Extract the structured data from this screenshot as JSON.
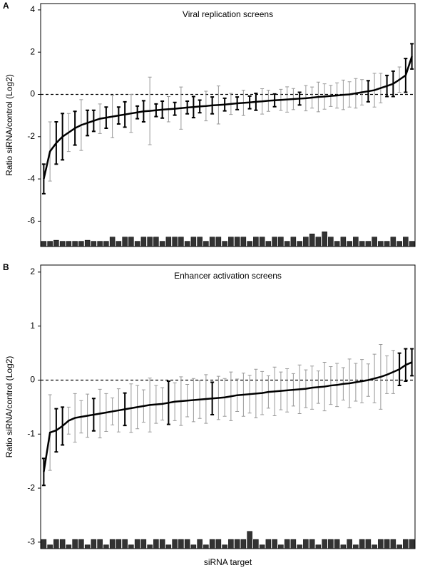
{
  "chart_data": [
    {
      "type": "errorbar",
      "panel_label": "A",
      "title": "Viral replication screens",
      "ylabel": "Ratio siRNA/control (Log2)",
      "ylim": [
        -7.2,
        4.3
      ],
      "yticks": [
        4,
        2,
        0,
        -2,
        -4,
        -6
      ],
      "reference_line": 0,
      "bar_base": -7.2,
      "color": "#000000",
      "muted_color": "#999999",
      "values": [
        -4.0,
        -2.7,
        -2.3,
        -2.0,
        -1.8,
        -1.6,
        -1.45,
        -1.35,
        -1.25,
        -1.15,
        -1.1,
        -1.05,
        -1.0,
        -0.95,
        -0.9,
        -0.85,
        -0.8,
        -0.78,
        -0.75,
        -0.72,
        -0.7,
        -0.68,
        -0.65,
        -0.62,
        -0.6,
        -0.57,
        -0.55,
        -0.52,
        -0.5,
        -0.48,
        -0.45,
        -0.42,
        -0.4,
        -0.38,
        -0.35,
        -0.33,
        -0.3,
        -0.28,
        -0.26,
        -0.24,
        -0.22,
        -0.2,
        -0.18,
        -0.15,
        -0.12,
        -0.1,
        -0.07,
        -0.05,
        -0.02,
        0.0,
        0.05,
        0.1,
        0.15,
        0.2,
        0.3,
        0.4,
        0.5,
        0.7,
        0.9,
        1.8
      ],
      "errors": [
        0.7,
        1.4,
        1.0,
        1.1,
        0.9,
        0.8,
        1.2,
        0.6,
        0.5,
        0.7,
        0.5,
        1.0,
        0.4,
        0.6,
        0.9,
        0.3,
        0.5,
        1.6,
        0.3,
        0.4,
        0.6,
        0.3,
        1.0,
        0.3,
        0.5,
        0.3,
        0.7,
        0.4,
        0.9,
        0.3,
        0.5,
        0.3,
        0.6,
        0.3,
        0.4,
        0.6,
        0.5,
        0.3,
        0.5,
        0.6,
        0.5,
        0.3,
        0.6,
        0.5,
        0.7,
        0.6,
        0.5,
        0.6,
        0.7,
        0.6,
        0.7,
        0.6,
        0.5,
        0.8,
        0.7,
        0.5,
        0.6,
        0.6,
        0.8,
        0.6
      ],
      "significant": [
        true,
        false,
        true,
        true,
        false,
        true,
        false,
        true,
        true,
        false,
        true,
        false,
        true,
        true,
        false,
        true,
        true,
        false,
        true,
        true,
        false,
        true,
        false,
        true,
        true,
        true,
        false,
        true,
        false,
        true,
        false,
        true,
        false,
        true,
        true,
        false,
        false,
        true,
        false,
        false,
        false,
        true,
        false,
        false,
        false,
        false,
        false,
        false,
        false,
        false,
        false,
        false,
        true,
        false,
        false,
        true,
        true,
        false,
        true,
        true
      ],
      "bottom_bars": [
        -6.95,
        -6.95,
        -6.9,
        -6.95,
        -6.95,
        -6.95,
        -6.95,
        -6.9,
        -6.95,
        -6.95,
        -6.95,
        -6.75,
        -6.95,
        -6.75,
        -6.75,
        -6.95,
        -6.75,
        -6.75,
        -6.75,
        -6.95,
        -6.75,
        -6.75,
        -6.75,
        -6.95,
        -6.75,
        -6.75,
        -6.95,
        -6.75,
        -6.75,
        -6.95,
        -6.75,
        -6.75,
        -6.75,
        -6.95,
        -6.75,
        -6.75,
        -6.95,
        -6.75,
        -6.75,
        -6.95,
        -6.75,
        -6.95,
        -6.75,
        -6.6,
        -6.75,
        -6.5,
        -6.75,
        -6.95,
        -6.75,
        -6.95,
        -6.75,
        -6.95,
        -6.95,
        -6.75,
        -6.95,
        -6.95,
        -6.75,
        -6.95,
        -6.75,
        -6.95
      ]
    },
    {
      "type": "errorbar",
      "panel_label": "B",
      "title": "Enhancer activation screens",
      "ylabel": "Ratio siRNA/control (Log2)",
      "xlabel": "siRNA target",
      "ylim": [
        -3.12,
        2.13
      ],
      "yticks": [
        2,
        1,
        0,
        -1,
        -2,
        -3
      ],
      "reference_line": 0,
      "bar_base": -3.12,
      "color": "#000000",
      "muted_color": "#999999",
      "values": [
        -1.7,
        -0.97,
        -0.93,
        -0.85,
        -0.75,
        -0.7,
        -0.68,
        -0.66,
        -0.64,
        -0.62,
        -0.6,
        -0.58,
        -0.56,
        -0.54,
        -0.52,
        -0.5,
        -0.48,
        -0.46,
        -0.45,
        -0.44,
        -0.42,
        -0.4,
        -0.39,
        -0.38,
        -0.37,
        -0.36,
        -0.35,
        -0.34,
        -0.33,
        -0.32,
        -0.3,
        -0.28,
        -0.27,
        -0.26,
        -0.25,
        -0.24,
        -0.22,
        -0.21,
        -0.2,
        -0.19,
        -0.18,
        -0.17,
        -0.16,
        -0.14,
        -0.13,
        -0.12,
        -0.1,
        -0.09,
        -0.07,
        -0.06,
        -0.04,
        -0.02,
        0.0,
        0.03,
        0.06,
        0.1,
        0.15,
        0.2,
        0.28,
        0.33
      ],
      "errors": [
        0.25,
        0.7,
        0.4,
        0.35,
        0.25,
        0.45,
        0.3,
        0.4,
        0.3,
        0.45,
        0.35,
        0.25,
        0.4,
        0.3,
        0.45,
        0.4,
        0.3,
        0.5,
        0.35,
        0.3,
        0.4,
        0.35,
        0.45,
        0.3,
        0.4,
        0.35,
        0.45,
        0.3,
        0.4,
        0.35,
        0.45,
        0.3,
        0.4,
        0.35,
        0.45,
        0.4,
        0.3,
        0.45,
        0.35,
        0.4,
        0.3,
        0.45,
        0.35,
        0.4,
        0.3,
        0.45,
        0.35,
        0.4,
        0.3,
        0.45,
        0.35,
        0.4,
        0.3,
        0.45,
        0.6,
        0.35,
        0.4,
        0.3,
        0.3,
        0.25
      ],
      "significant": [
        true,
        false,
        true,
        true,
        false,
        false,
        false,
        false,
        true,
        false,
        false,
        false,
        false,
        true,
        false,
        false,
        false,
        false,
        false,
        false,
        true,
        false,
        false,
        false,
        false,
        false,
        false,
        true,
        false,
        false,
        false,
        false,
        false,
        false,
        false,
        false,
        false,
        false,
        false,
        false,
        false,
        false,
        false,
        false,
        false,
        false,
        false,
        false,
        false,
        false,
        false,
        false,
        false,
        false,
        false,
        false,
        false,
        true,
        true,
        true
      ],
      "bottom_bars": [
        -2.95,
        -3.05,
        -2.95,
        -2.95,
        -3.05,
        -2.95,
        -2.95,
        -3.05,
        -2.95,
        -2.95,
        -3.05,
        -2.95,
        -2.95,
        -2.95,
        -3.05,
        -2.95,
        -2.95,
        -3.05,
        -2.95,
        -2.95,
        -3.05,
        -2.95,
        -2.95,
        -2.95,
        -3.05,
        -2.95,
        -3.05,
        -2.95,
        -2.95,
        -3.05,
        -2.95,
        -2.95,
        -2.95,
        -2.8,
        -2.95,
        -3.05,
        -2.95,
        -2.95,
        -3.05,
        -2.95,
        -2.95,
        -3.05,
        -2.95,
        -2.95,
        -3.05,
        -2.95,
        -2.95,
        -2.95,
        -3.05,
        -2.95,
        -3.05,
        -2.95,
        -2.95,
        -3.05,
        -2.95,
        -2.95,
        -2.95,
        -3.05,
        -2.95,
        -2.95
      ]
    }
  ]
}
